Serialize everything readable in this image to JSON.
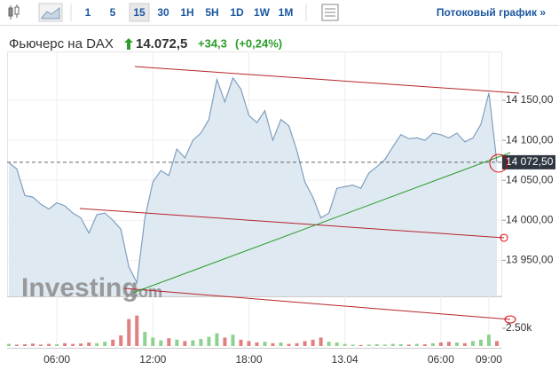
{
  "toolbar": {
    "intervals": [
      "1",
      "5",
      "15",
      "30",
      "1H",
      "5H",
      "1D",
      "1W",
      "1M"
    ],
    "active_index": 2,
    "stream_link": "Потоковый график »"
  },
  "header": {
    "name": "Фьючерс на DAX",
    "price": "14.072,5",
    "change": "+34,3",
    "change_pct": "(+0,24%)"
  },
  "watermark": {
    "brand": "Investing",
    "suffix": ".com"
  },
  "chart_data": {
    "type": "area",
    "categories": [
      null,
      null,
      null,
      null,
      null,
      null,
      "06:00",
      null,
      null,
      null,
      null,
      null,
      null,
      null,
      null,
      null,
      null,
      null,
      "12:00",
      null,
      null,
      null,
      null,
      null,
      null,
      null,
      null,
      null,
      null,
      null,
      "18:00",
      null,
      null,
      null,
      null,
      null,
      null,
      null,
      null,
      null,
      null,
      null,
      "13.04",
      null,
      null,
      null,
      null,
      null,
      null,
      null,
      null,
      null,
      null,
      null,
      "06:00",
      null,
      null,
      null,
      null,
      null,
      "09:00",
      null
    ],
    "series": [
      {
        "color": "#7f9fbf",
        "fill": "#dfe9f2",
        "values": [
          14072,
          14064,
          14031,
          14029,
          14020,
          14014,
          14022,
          14018,
          14009,
          14003,
          13984,
          14007,
          14009,
          14000,
          13989,
          13942,
          13922,
          14003,
          14048,
          14062,
          14056,
          14089,
          14078,
          14100,
          14109,
          14126,
          14176,
          14148,
          14178,
          14164,
          14131,
          14122,
          14137,
          14100,
          14126,
          14118,
          14087,
          14048,
          14029,
          14003,
          14009,
          14040,
          14042,
          14044,
          14040,
          14059,
          14067,
          14076,
          14092,
          14107,
          14102,
          14103,
          14100,
          14109,
          14107,
          14103,
          14109,
          14098,
          14103,
          14120,
          14159,
          14072.5
        ]
      },
      {
        "axis": "y2",
        "up_color": "#8fd18f",
        "down_color": "#e08080",
        "values": [
          300,
          200,
          250,
          350,
          200,
          300,
          250,
          400,
          300,
          350,
          500,
          400,
          600,
          900,
          1500,
          3800,
          4300,
          2000,
          1200,
          800,
          1100,
          900,
          700,
          800,
          1000,
          1300,
          1800,
          1200,
          1600,
          900,
          700,
          500,
          600,
          400,
          500,
          300,
          400,
          700,
          900,
          1200,
          600,
          500,
          300,
          200,
          150,
          200,
          250,
          200,
          300,
          250,
          200,
          300,
          250,
          400,
          500,
          600,
          500,
          400,
          700,
          900,
          1600,
          700
        ]
      }
    ],
    "ylim": [
      13906,
      14211
    ],
    "yticks": [
      {
        "value": 13950,
        "label": "13 950,00"
      },
      {
        "value": 14000,
        "label": "14 000,00"
      },
      {
        "value": 14050,
        "label": "14 050,00"
      },
      {
        "value": 14100,
        "label": "14 100,00"
      },
      {
        "value": 14150,
        "label": "14 150,00"
      }
    ],
    "y2lim": [
      0,
      6875
    ],
    "y2ticks": [
      {
        "value": 2500,
        "label": "2.50k"
      }
    ],
    "last_price": {
      "value": 14072.5,
      "label": "14 072,50"
    },
    "grid": true
  }
}
